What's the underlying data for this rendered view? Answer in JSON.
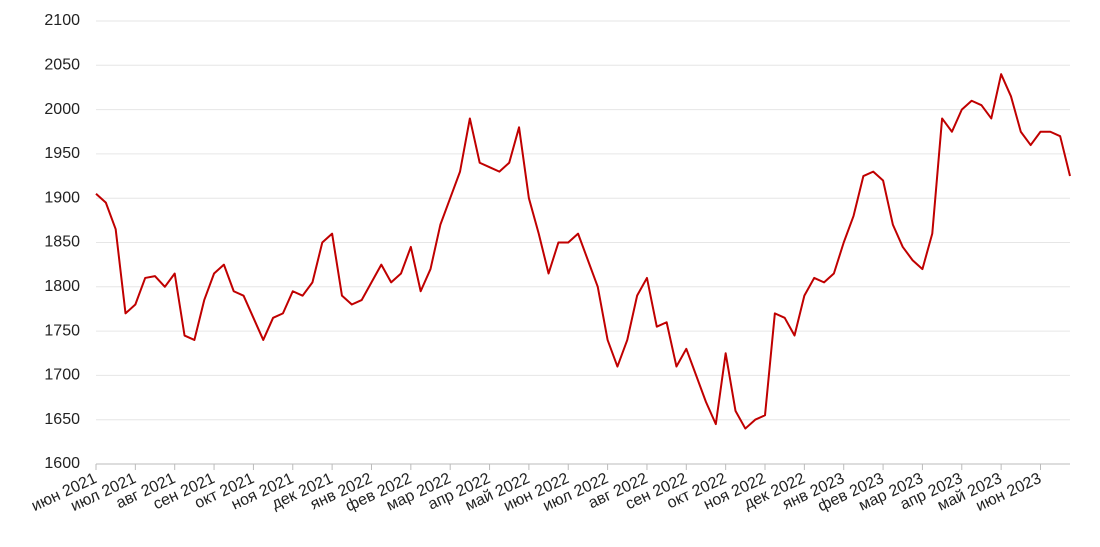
{
  "chart_data": {
    "type": "line",
    "series": [
      {
        "color": "#c00000",
        "values": [
          1905,
          1895,
          1865,
          1770,
          1780,
          1810,
          1812,
          1800,
          1815,
          1745,
          1740,
          1785,
          1815,
          1825,
          1795,
          1790,
          1765,
          1740,
          1765,
          1770,
          1795,
          1790,
          1805,
          1850,
          1860,
          1790,
          1780,
          1785,
          1805,
          1825,
          1805,
          1815,
          1845,
          1795,
          1820,
          1870,
          1900,
          1930,
          1990,
          1940,
          1935,
          1930,
          1940,
          1980,
          1900,
          1860,
          1815,
          1850,
          1850,
          1860,
          1830,
          1800,
          1740,
          1710,
          1740,
          1790,
          1810,
          1755,
          1760,
          1710,
          1730,
          1700,
          1670,
          1645,
          1725,
          1660,
          1640,
          1650,
          1655,
          1770,
          1765,
          1745,
          1790,
          1810,
          1805,
          1815,
          1850,
          1880,
          1925,
          1930,
          1920,
          1870,
          1845,
          1830,
          1820,
          1860,
          1990,
          1975,
          2000,
          2010,
          2005,
          1990,
          2040,
          2015,
          1975,
          1960,
          1975,
          1975,
          1970,
          1925
        ]
      }
    ],
    "xlim": [
      0,
      99
    ],
    "xticks": [
      {
        "value": 0,
        "label": "июн 2021"
      },
      {
        "value": 4,
        "label": "июл 2021"
      },
      {
        "value": 8,
        "label": "авг 2021"
      },
      {
        "value": 12,
        "label": "сен 2021"
      },
      {
        "value": 16,
        "label": "окт 2021"
      },
      {
        "value": 20,
        "label": "ноя 2021"
      },
      {
        "value": 24,
        "label": "дек 2021"
      },
      {
        "value": 28,
        "label": "янв 2022"
      },
      {
        "value": 32,
        "label": "фев 2022"
      },
      {
        "value": 36,
        "label": "мар 2022"
      },
      {
        "value": 40,
        "label": "апр 2022"
      },
      {
        "value": 44,
        "label": "май 2022"
      },
      {
        "value": 48,
        "label": "июн 2022"
      },
      {
        "value": 52,
        "label": "июл 2022"
      },
      {
        "value": 56,
        "label": "авг 2022"
      },
      {
        "value": 60,
        "label": "сен 2022"
      },
      {
        "value": 64,
        "label": "окт 2022"
      },
      {
        "value": 68,
        "label": "ноя 2022"
      },
      {
        "value": 72,
        "label": "дек 2022"
      },
      {
        "value": 76,
        "label": "янв 2023"
      },
      {
        "value": 80,
        "label": "фев 2023"
      },
      {
        "value": 84,
        "label": "мар 2023"
      },
      {
        "value": 88,
        "label": "апр 2023"
      },
      {
        "value": 92,
        "label": "май 2023"
      },
      {
        "value": 96,
        "label": "июн 2023"
      }
    ],
    "ylim": [
      1600,
      2100
    ],
    "yticks": [
      1600,
      1650,
      1700,
      1750,
      1800,
      1850,
      1900,
      1950,
      2000,
      2050,
      2100
    ],
    "grid": true
  }
}
